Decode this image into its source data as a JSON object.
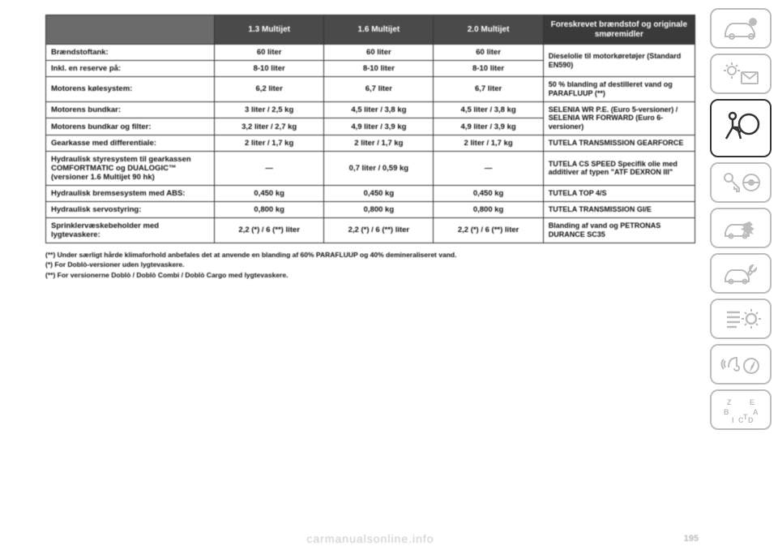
{
  "colors": {
    "header_blank": "#6b6b6b",
    "header_dark": "#4a4a4a",
    "header_right": "#3a3a3a",
    "border": "#333333",
    "sidebar_inactive": "#bcbcbc",
    "sidebar_active": "#333333",
    "footer_text": "#c9c9c9"
  },
  "table": {
    "headers": {
      "blank": "",
      "col1": "1.3 Multijet",
      "col2": "1.6 Multijet",
      "col3": "2.0 Multijet",
      "col4": "Foreskrevet brændstof og originale smøremidler"
    },
    "rows": [
      {
        "label": "Brændstoftank:",
        "v1": "60 liter",
        "v2": "60 liter",
        "v3": "60 liter",
        "rec": "Dieselolie til motorkøretøjer (Standard EN590)",
        "rec_rowspan": 2
      },
      {
        "label": "Inkl. en reserve på:",
        "v1": "8-10 liter",
        "v2": "8-10 liter",
        "v3": "8-10 liter",
        "rec": ""
      },
      {
        "label": "Motorens kølesystem:",
        "v1": "6,2 liter",
        "v2": "6,7 liter",
        "v3": "6,7 liter",
        "rec": "50 % blanding af destilleret vand og PARAFLUUP (**)"
      },
      {
        "label": "Motorens bundkar:",
        "v1": "3 liter / 2,5 kg",
        "v2": "4,5 liter / 3,8 kg",
        "v3": "4,5 liter / 3,8 kg",
        "rec": "SELENIA WR P.E. (Euro 5-versioner) / SELENIA WR FORWARD (Euro 6-versioner)",
        "rec_rowspan": 2
      },
      {
        "label": "Motorens bundkar og filter:",
        "v1": "3,2 liter / 2,7 kg",
        "v2": "4,9 liter / 3,9 kg",
        "v3": "4,9 liter / 3,9 kg",
        "rec": ""
      },
      {
        "label": "Gearkasse med differentiale:",
        "v1": "2 liter / 1,7 kg",
        "v2": "2 liter / 1,7 kg",
        "v3": "2 liter / 1,7 kg",
        "rec": "TUTELA TRANSMISSION GEARFORCE"
      },
      {
        "label": "Hydraulisk styresystem til gearkassen COMFORTMATIC og DUALOGIC™ (versioner 1.6 Multijet 90 hk)",
        "v1": "—",
        "v2": "0,7 liter / 0,59 kg",
        "v3": "—",
        "rec": "TUTELA CS SPEED Specifik olie med additiver af typen \"ATF DEXRON III\""
      },
      {
        "label": "Hydraulisk bremsesystem med ABS:",
        "v1": "0,450 kg",
        "v2": "0,450 kg",
        "v3": "0,450 kg",
        "rec": "TUTELA TOP 4/S"
      },
      {
        "label": "Hydraulisk servostyring:",
        "v1": "0,800 kg",
        "v2": "0,800 kg",
        "v3": "0,800 kg",
        "rec": "TUTELA TRANSMISSION GI/E"
      },
      {
        "label": "Sprinklervæskebeholder med lygtevaskere:",
        "v1": "2,2 (*) / 6 (**) liter",
        "v2": "2,2 (*) / 6 (**) liter",
        "v3": "2,2 (*) / 6 (**) liter",
        "rec": "Blanding af vand og PETRONAS DURANCE SC35"
      }
    ]
  },
  "footnotes": {
    "n1": "(**) Under særligt hårde klimaforhold anbefales det at anvende en blanding af 60% PARAFLUUP og 40% demineraliseret vand.",
    "n2": "(*) For Doblò-versioner uden lygtevaskere.",
    "n3": "(**) For versionerne Doblò / Doblò Combi / Doblò Cargo med lygtevaskere."
  },
  "footer": {
    "watermark": "carmanualsonline.info",
    "page_number": "195"
  },
  "sidebar": {
    "items": [
      {
        "name": "vehicle-info-icon"
      },
      {
        "name": "lights-messages-icon"
      },
      {
        "name": "airbag-icon",
        "active": true
      },
      {
        "name": "key-steering-icon"
      },
      {
        "name": "collision-icon"
      },
      {
        "name": "service-icon"
      },
      {
        "name": "settings-list-icon"
      },
      {
        "name": "media-nav-icon"
      },
      {
        "name": "alphabet-icon"
      }
    ]
  }
}
